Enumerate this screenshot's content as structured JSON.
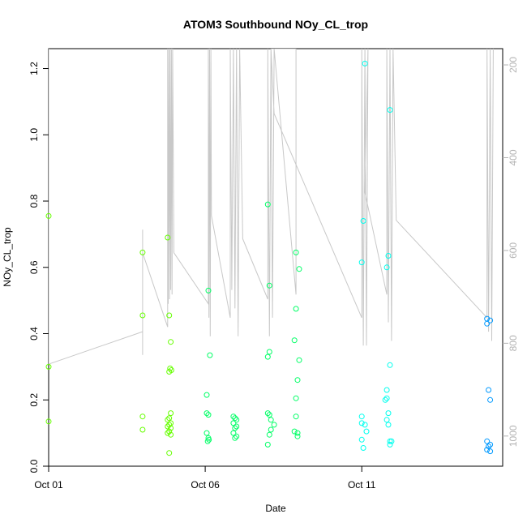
{
  "chart_data": {
    "type": "scatter",
    "title": "ATOM3 Southbound NOy_CL_trop",
    "xlabel": "Date",
    "ylabel": "NOy_CL_trop",
    "ylabel_right": "",
    "x_unit": "day of October 2017",
    "xlim": [
      1,
      15.5
    ],
    "ylim": [
      0,
      1.26
    ],
    "y2lim": [
      1065,
      165
    ],
    "x_ticks": [
      {
        "value": 1,
        "label": "Oct 01"
      },
      {
        "value": 6,
        "label": "Oct 06"
      },
      {
        "value": 11,
        "label": "Oct 11"
      }
    ],
    "y_ticks": [
      0.0,
      0.2,
      0.4,
      0.6,
      0.8,
      1.0,
      1.2
    ],
    "y_tick_labels": [
      "0.0",
      "0.2",
      "0.4",
      "0.6",
      "0.8",
      "1.0",
      "1.2"
    ],
    "y2_ticks": [
      200,
      400,
      600,
      800,
      1000
    ],
    "y2_tick_labels": [
      "200",
      "400",
      "600",
      "800",
      "1000"
    ],
    "grid": false,
    "legend": "none",
    "colors": {
      "points_early": "#66ff00",
      "points_mid": "#00ff66",
      "points_late": "#00ffee",
      "points_end": "#0099ff",
      "pressure_line": "#c8c8c8",
      "axis": "#000000",
      "right_axis": "#b3b3b3"
    },
    "points": [
      [
        1.0,
        0.755
      ],
      [
        1.0,
        0.3
      ],
      [
        1.0,
        0.135
      ],
      [
        4.0,
        0.645
      ],
      [
        4.0,
        0.455
      ],
      [
        4.0,
        0.15
      ],
      [
        4.0,
        0.11
      ],
      [
        4.8,
        0.69
      ],
      [
        4.85,
        0.455
      ],
      [
        4.9,
        0.375
      ],
      [
        4.88,
        0.295
      ],
      [
        4.92,
        0.29
      ],
      [
        4.85,
        0.285
      ],
      [
        4.9,
        0.16
      ],
      [
        4.85,
        0.145
      ],
      [
        4.8,
        0.14
      ],
      [
        4.9,
        0.13
      ],
      [
        4.85,
        0.125
      ],
      [
        4.8,
        0.12
      ],
      [
        4.9,
        0.115
      ],
      [
        4.85,
        0.105
      ],
      [
        4.8,
        0.1
      ],
      [
        4.9,
        0.095
      ],
      [
        4.85,
        0.04
      ],
      [
        6.1,
        0.53
      ],
      [
        6.15,
        0.335
      ],
      [
        6.05,
        0.215
      ],
      [
        6.05,
        0.16
      ],
      [
        6.1,
        0.155
      ],
      [
        6.05,
        0.1
      ],
      [
        6.1,
        0.085
      ],
      [
        6.12,
        0.08
      ],
      [
        6.08,
        0.075
      ],
      [
        6.9,
        0.15
      ],
      [
        6.95,
        0.145
      ],
      [
        7.0,
        0.14
      ],
      [
        6.9,
        0.13
      ],
      [
        7.0,
        0.12
      ],
      [
        6.95,
        0.115
      ],
      [
        6.9,
        0.1
      ],
      [
        7.0,
        0.09
      ],
      [
        6.95,
        0.085
      ],
      [
        8.0,
        0.79
      ],
      [
        8.05,
        0.545
      ],
      [
        8.05,
        0.345
      ],
      [
        8.0,
        0.33
      ],
      [
        8.0,
        0.16
      ],
      [
        8.05,
        0.155
      ],
      [
        8.1,
        0.14
      ],
      [
        8.2,
        0.125
      ],
      [
        8.1,
        0.11
      ],
      [
        8.05,
        0.095
      ],
      [
        8.0,
        0.065
      ],
      [
        8.9,
        0.645
      ],
      [
        9.0,
        0.595
      ],
      [
        8.9,
        0.475
      ],
      [
        8.85,
        0.38
      ],
      [
        9.0,
        0.32
      ],
      [
        8.95,
        0.26
      ],
      [
        8.9,
        0.205
      ],
      [
        8.9,
        0.15
      ],
      [
        8.85,
        0.105
      ],
      [
        8.95,
        0.1
      ],
      [
        8.95,
        0.09
      ],
      [
        11.0,
        0.615
      ],
      [
        11.05,
        0.74
      ],
      [
        11.1,
        1.215
      ],
      [
        11.0,
        0.15
      ],
      [
        11.0,
        0.13
      ],
      [
        11.1,
        0.125
      ],
      [
        11.15,
        0.105
      ],
      [
        11.0,
        0.08
      ],
      [
        11.05,
        0.055
      ],
      [
        11.8,
        0.6
      ],
      [
        11.85,
        0.635
      ],
      [
        11.9,
        1.075
      ],
      [
        11.9,
        0.305
      ],
      [
        11.8,
        0.23
      ],
      [
        11.8,
        0.205
      ],
      [
        11.75,
        0.2
      ],
      [
        11.85,
        0.16
      ],
      [
        11.8,
        0.14
      ],
      [
        11.85,
        0.125
      ],
      [
        11.9,
        0.075
      ],
      [
        11.95,
        0.075
      ],
      [
        11.9,
        0.065
      ],
      [
        15.0,
        0.445
      ],
      [
        15.1,
        0.44
      ],
      [
        15.0,
        0.43
      ],
      [
        15.05,
        0.23
      ],
      [
        15.1,
        0.2
      ],
      [
        15.0,
        0.075
      ],
      [
        15.1,
        0.065
      ],
      [
        15.05,
        0.06
      ],
      [
        15.0,
        0.05
      ],
      [
        15.1,
        0.045
      ]
    ],
    "pressure_line_series": [
      [
        1.0,
        165
      ],
      [
        1.0,
        845
      ],
      [
        4.0,
        775
      ],
      [
        4.0,
        585
      ],
      [
        4.0,
        825
      ],
      [
        4.0,
        555
      ],
      [
        4.0,
        605
      ],
      [
        4.8,
        765
      ],
      [
        4.8,
        165
      ],
      [
        4.82,
        715
      ],
      [
        4.84,
        165
      ],
      [
        4.86,
        705
      ],
      [
        4.88,
        165
      ],
      [
        4.9,
        685
      ],
      [
        4.92,
        165
      ],
      [
        4.94,
        695
      ],
      [
        4.96,
        165
      ],
      [
        5.0,
        605
      ],
      [
        6.1,
        715
      ],
      [
        6.1,
        165
      ],
      [
        6.12,
        745
      ],
      [
        6.14,
        165
      ],
      [
        6.16,
        785
      ],
      [
        6.18,
        165
      ],
      [
        6.2,
        525
      ],
      [
        6.8,
        745
      ],
      [
        6.8,
        165
      ],
      [
        6.85,
        685
      ],
      [
        6.9,
        165
      ],
      [
        6.95,
        725
      ],
      [
        7.0,
        165
      ],
      [
        7.05,
        785
      ],
      [
        7.1,
        165
      ],
      [
        7.2,
        575
      ],
      [
        8.0,
        705
      ],
      [
        8.0,
        165
      ],
      [
        8.05,
        785
      ],
      [
        8.1,
        165
      ],
      [
        8.15,
        745
      ],
      [
        8.2,
        165
      ],
      [
        8.9,
        695
      ],
      [
        8.9,
        165
      ],
      [
        8.1,
        165
      ],
      [
        8.2,
        305
      ],
      [
        11.0,
        745
      ],
      [
        11.0,
        165
      ],
      [
        11.05,
        805
      ],
      [
        11.1,
        165
      ],
      [
        11.15,
        805
      ],
      [
        11.2,
        165
      ],
      [
        11.1,
        475
      ],
      [
        11.8,
        695
      ],
      [
        11.8,
        165
      ],
      [
        11.85,
        755
      ],
      [
        11.9,
        165
      ],
      [
        11.95,
        795
      ],
      [
        12.0,
        165
      ],
      [
        12.1,
        535
      ],
      [
        15.0,
        745
      ],
      [
        15.0,
        165
      ],
      [
        15.05,
        775
      ],
      [
        15.1,
        165
      ],
      [
        15.15,
        795
      ],
      [
        15.2,
        165
      ]
    ]
  }
}
